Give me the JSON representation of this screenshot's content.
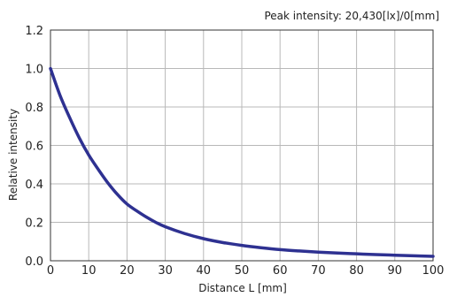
{
  "chart_data": {
    "type": "line",
    "title": "",
    "annotation": "Peak intensity: 20,430[lx]/0[mm]",
    "xlabel": "Distance L [mm]",
    "ylabel": "Relative intensity",
    "xlim": [
      0,
      100
    ],
    "ylim": [
      0,
      1.2
    ],
    "x_ticks": [
      "0",
      "10",
      "20",
      "30",
      "40",
      "50",
      "60",
      "70",
      "80",
      "90",
      "100"
    ],
    "y_ticks": [
      "0.0",
      "0.2",
      "0.4",
      "0.6",
      "0.8",
      "1.0",
      "1.2"
    ],
    "grid": true,
    "series_color": "#2e3191",
    "grid_color": "#b8b8b8",
    "series": [
      {
        "x": [
          0,
          2.5,
          5,
          7.5,
          10,
          12.5,
          15,
          17.5,
          20,
          22.5,
          25,
          27.5,
          30,
          35,
          40,
          45,
          50,
          55,
          60,
          65,
          70,
          75,
          80,
          85,
          90,
          95,
          100
        ],
        "values": [
          1.0,
          0.86,
          0.745,
          0.64,
          0.55,
          0.475,
          0.405,
          0.345,
          0.295,
          0.26,
          0.228,
          0.2,
          0.177,
          0.142,
          0.115,
          0.095,
          0.08,
          0.068,
          0.058,
          0.051,
          0.045,
          0.04,
          0.036,
          0.032,
          0.029,
          0.026,
          0.023
        ]
      }
    ]
  }
}
